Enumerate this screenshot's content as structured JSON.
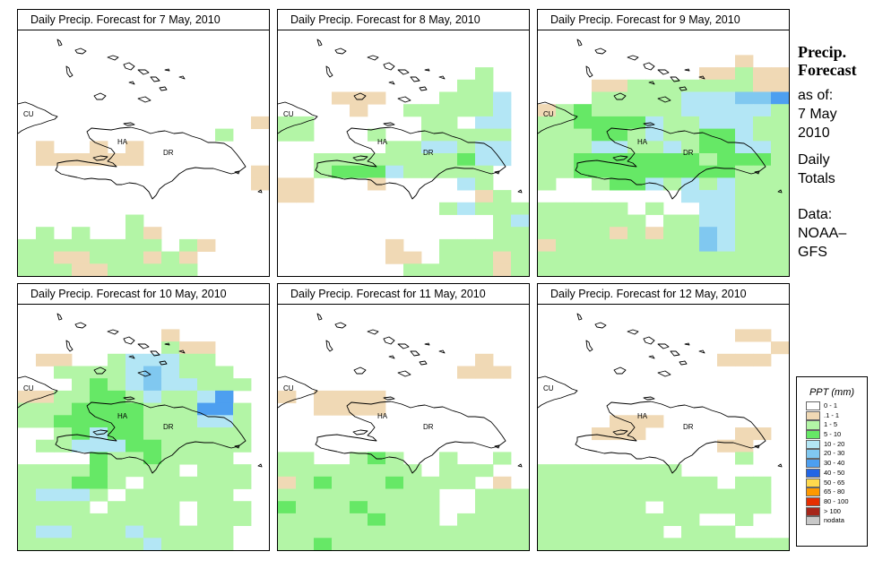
{
  "panels": [
    {
      "title": "Daily Precip. Forecast for  7 May, 2010",
      "id": 0
    },
    {
      "title": "Daily Precip. Forecast for  8 May, 2010",
      "id": 1
    },
    {
      "title": "Daily Precip. Forecast for  9 May, 2010",
      "id": 2
    },
    {
      "title": "Daily Precip. Forecast for  10 May, 2010",
      "id": 3
    },
    {
      "title": "Daily Precip. Forecast for  11 May, 2010",
      "id": 4
    },
    {
      "title": "Daily Precip. Forecast for  12 May, 2010",
      "id": 5
    }
  ],
  "map_labels": {
    "cuba": "CU",
    "haiti": "HA",
    "dominican_republic": "DR"
  },
  "sidebar": {
    "title_line1": "Precip.",
    "title_line2": "Forecast",
    "asof_line1": "as of:",
    "asof_line2": "7 May",
    "asof_line3": "2010",
    "totals_line1": "Daily",
    "totals_line2": "Totals",
    "data_line1": "Data:",
    "data_line2": "NOAA–",
    "data_line3": "GFS"
  },
  "legend": {
    "title": "PPT (mm)",
    "items": [
      {
        "label": "0 - 1",
        "color": "#ffffff"
      },
      {
        "label": ".1 - 1",
        "color": "#f0d9b5"
      },
      {
        "label": "1 - 5",
        "color": "#b3f5a6"
      },
      {
        "label": "5 - 10",
        "color": "#66e866"
      },
      {
        "label": "10 - 20",
        "color": "#b3e6f5"
      },
      {
        "label": "20 - 30",
        "color": "#80c8f0"
      },
      {
        "label": "30 - 40",
        "color": "#4d9ff0"
      },
      {
        "label": "40 - 50",
        "color": "#2266e6"
      },
      {
        "label": "50 - 65",
        "color": "#ffd94d"
      },
      {
        "label": "65 - 80",
        "color": "#ff9900"
      },
      {
        "label": "80 - 100",
        "color": "#e62e00"
      },
      {
        "label": "> 100",
        "color": "#a6261a"
      },
      {
        "label": "nodata",
        "color": "#c8c8c8"
      }
    ]
  },
  "grid_data": {
    "levels": ".=0-1 t=.1-1 g=1-5 G=5-10 b=10-20 B=20-30 D=30-40",
    "panels": [
      [
        "..............",
        "..............",
        "..............",
        "..............",
        "..............",
        "..............",
        "..............",
        ".............t",
        "...........g..",
        ".t..t.t.......",
        ".tttttt.......",
        ".............t",
        ".............t",
        "..............",
        "..............",
        "......g.......",
        ".g.g..gt......",
        "gggggggg.gt...",
        "ggttgggtgt....",
        "gggttggggg...."
      ],
      [
        "..............",
        "..............",
        "..............",
        "...........g..",
        "..........gg..",
        "...ttt...gggb.",
        "....t..gggggb.",
        "gg......gg.bb.",
        "gg...g..ggggg.",
        "......ggbbgbb.",
        "..ggggggggGbb.",
        "..gGGGbggggg..",
        "tt...t....bg..",
        "tt.........tg.",
        ".........gbggg",
        "............gb",
        "............gg",
        "......t..ggggg",
        "......tt.gggtg",
        ".......gggggtg"
      ],
      [
        "..............",
        "..............",
        "...........t..",
        ".........ttgtt",
        "...ttgggggggtt",
        "...gggggbbbBBD",
        "tgGgggggbbbbbg",
        "ggGGGGbggbbbgg",
        "gggGGgbggGGbgg",
        "gggbbggbgGGbbg",
        "ggGGGGGGGgGGGg",
        "ggGGGGGGGGGggg",
        "g..gGGbgbgbggg",
        "........bbbggg",
        "ggggg.g..bbggg",
        "gggggg.ggbbggg",
        "ggggtgtggBbggg",
        "tggggggggBbggg",
        "gggggggggggggg",
        "gggggggggggggg"
      ],
      [
        "..............",
        "..............",
        "........t.....",
        "........gtt...",
        ".tt..gbbbgg...",
        "..ggggbBbggg..",
        "...gGgbBbbggg.",
        "ttggGGgbggbD..",
        "gggGGGGgggDDg.",
        "ggGGGGGgggbbg.",
        "..gGbGGgggggg.",
        ".ggbbbGGggggg.",
        "....GggGgggg..",
        "ggggGgggg.ggg.",
        "gggGGg.gggggg.",
        "gbbbg.gggggg..",
        "gggg.gggg.ggg.",
        "ggggggggg.ggg.",
        "gbbgggbggggg..",
        "gggggggbgggg.."
      ],
      [
        "..............",
        "..............",
        "..............",
        "..............",
        "...........t..",
        "..........ttt.",
        "..............",
        "t.tttt........",
        "..tttt........",
        "..............",
        "..............",
        "..............",
        "gg..gGg..g..g.",
        "gggggggg.ggg..",
        "tgGgggGgggg.t.",
        "ggggggggg..ggg",
        "GgggGgggg..ggg",
        "gggggGggg.gggg",
        "gggggggggggggg",
        "ggGggggggggggg"
      ],
      [
        "..............",
        "..............",
        "...........tt.",
        ".............t",
        "..........ttt.",
        "..............",
        "..............",
        "..............",
        "..............",
        "....ttt.......",
        "...ttt.....tt.",
        "..........tt..",
        "...........g..",
        "gggggggg......",
        "gggggggggg.gg.",
        "ggggggggggggg.",
        "gggggg.gggggg.",
        "ggggggggg..g..",
        "ggggggg.ggg...",
        "gggggggggggggg"
      ]
    ]
  }
}
